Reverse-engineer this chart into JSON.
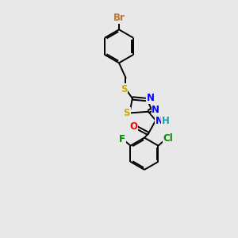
{
  "background_color": "#e8e8e8",
  "bond_color": "#000000",
  "atom_colors": {
    "Br": "#b87333",
    "S": "#ccaa00",
    "N": "#0000ff",
    "O": "#ff0000",
    "F": "#008800",
    "Cl": "#008800",
    "H": "#00aaaa",
    "C": "#000000"
  },
  "lw": 1.4,
  "off": 0.012,
  "fs": 8.5
}
